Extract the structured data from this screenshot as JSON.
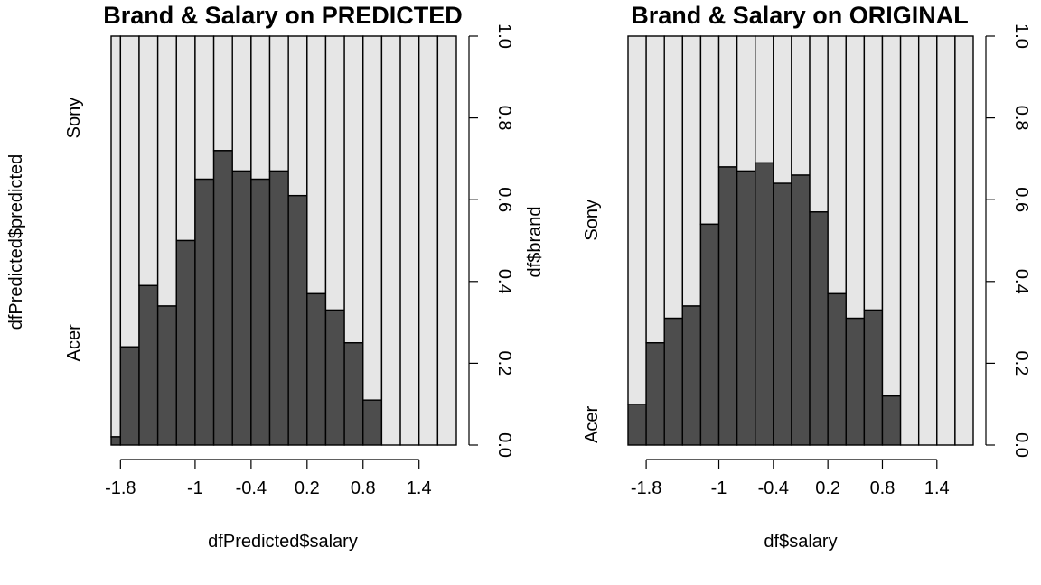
{
  "colors": {
    "bottom": "#4d4d4d",
    "top": "#e6e6e6",
    "stroke": "#000000"
  },
  "chart_data": [
    {
      "type": "bar",
      "subtype": "spineplot",
      "title": "Brand & Salary on PREDICTED",
      "xlabel": "dfPredicted$salary",
      "ylabel": "dfPredicted$predicted",
      "right_label": "df$brand",
      "categories": [
        "Acer",
        "Sony"
      ],
      "category_label_positions": [
        0.25,
        0.8
      ],
      "breaks": [
        -1.9,
        -1.8,
        -1.6,
        -1.4,
        -1.2,
        -1.0,
        -0.8,
        -0.6,
        -0.4,
        -0.2,
        0.0,
        0.2,
        0.4,
        0.6,
        0.8,
        1.0,
        1.2,
        1.4,
        1.6,
        1.8
      ],
      "acer_share": [
        0.02,
        0.24,
        0.39,
        0.34,
        0.5,
        0.65,
        0.72,
        0.67,
        0.65,
        0.67,
        0.61,
        0.37,
        0.33,
        0.25,
        0.11,
        0.0,
        0.0,
        0.0,
        0.0
      ],
      "xticks": [
        "-1.8",
        "-1",
        "-0.4",
        "0.2",
        "0.8",
        "1.4"
      ],
      "xtick_values": [
        -1.8,
        -1.0,
        -0.4,
        0.2,
        0.8,
        1.4
      ],
      "yticks": [
        "0.0",
        "0.2",
        "0.4",
        "0.6",
        "0.8",
        "1.0"
      ],
      "ylim": [
        0,
        1
      ]
    },
    {
      "type": "bar",
      "subtype": "spineplot",
      "title": "Brand & Salary on ORIGINAL",
      "xlabel": "df$salary",
      "ylabel": "",
      "right_label": "",
      "categories": [
        "Acer",
        "Sony"
      ],
      "category_label_positions": [
        0.05,
        0.55
      ],
      "breaks": [
        -2.0,
        -1.8,
        -1.6,
        -1.4,
        -1.2,
        -1.0,
        -0.8,
        -0.6,
        -0.4,
        -0.2,
        0.0,
        0.2,
        0.4,
        0.6,
        0.8,
        1.0,
        1.2,
        1.4,
        1.6,
        1.8
      ],
      "acer_share": [
        0.1,
        0.25,
        0.31,
        0.34,
        0.54,
        0.68,
        0.67,
        0.69,
        0.64,
        0.66,
        0.57,
        0.37,
        0.31,
        0.33,
        0.12,
        0.0,
        0.0,
        0.0,
        0.0
      ],
      "xticks": [
        "-1.8",
        "-1",
        "-0.4",
        "0.2",
        "0.8",
        "1.4"
      ],
      "xtick_values": [
        -1.8,
        -1.0,
        -0.4,
        0.2,
        0.8,
        1.4
      ],
      "yticks": [
        "0.0",
        "0.2",
        "0.4",
        "0.6",
        "0.8",
        "1.0"
      ],
      "ylim": [
        0,
        1
      ]
    }
  ]
}
